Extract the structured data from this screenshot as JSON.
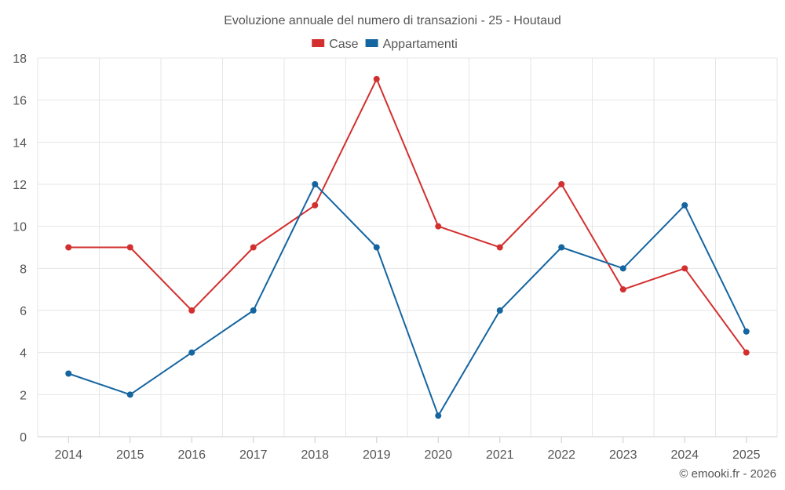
{
  "chart_data": {
    "type": "line",
    "title": "Evoluzione annuale del numero di transazioni - 25 - Houtaud",
    "categories": [
      "2014",
      "2015",
      "2016",
      "2017",
      "2018",
      "2019",
      "2020",
      "2021",
      "2022",
      "2023",
      "2024",
      "2025"
    ],
    "series": [
      {
        "name": "Case",
        "color": "#d32f2f",
        "values": [
          9,
          9,
          6,
          9,
          11,
          17,
          10,
          9,
          12,
          7,
          8,
          4
        ]
      },
      {
        "name": "Appartamenti",
        "color": "#1565a0",
        "values": [
          3,
          2,
          4,
          6,
          12,
          9,
          1,
          6,
          9,
          8,
          11,
          5
        ]
      }
    ],
    "ylim": [
      0,
      18
    ],
    "yticks": [
      0,
      2,
      4,
      6,
      8,
      10,
      12,
      14,
      16,
      18
    ],
    "xlabel": "",
    "ylabel": "",
    "grid": true,
    "legend": "top-center"
  },
  "credit": "© emooki.fr - 2026"
}
